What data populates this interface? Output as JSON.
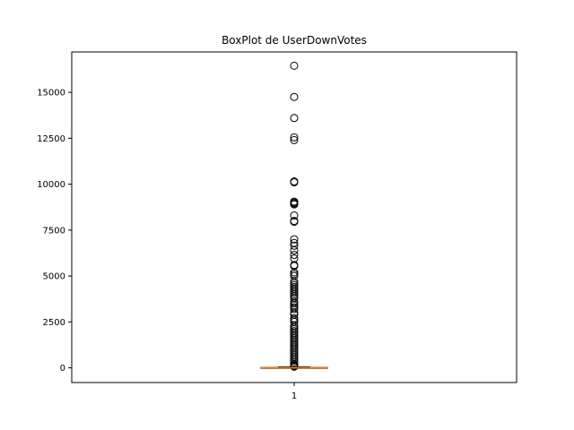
{
  "chart_data": {
    "type": "box",
    "title": "BoxPlot de UserDownVotes",
    "xlabel": "",
    "ylabel": "",
    "categories": [
      "1"
    ],
    "ylim": [
      -800,
      17200
    ],
    "yticks": [
      0,
      2500,
      5000,
      7500,
      10000,
      12500,
      15000
    ],
    "box": {
      "q1": 0,
      "median": 0,
      "q3": 20,
      "whisker_low": 0,
      "whisker_high": 50
    },
    "outliers": [
      16450,
      14750,
      13600,
      12550,
      12400,
      10150,
      10100,
      9050,
      9000,
      8950,
      8900,
      8300,
      8000,
      7950,
      7000,
      6800,
      6650,
      6400,
      6150,
      5950,
      5600,
      5550,
      5200,
      5100,
      5000,
      4700,
      4600,
      4500,
      4400,
      4300,
      4200,
      4100,
      4000,
      3900,
      3800,
      3600,
      3500,
      3400,
      3300,
      3200,
      3000,
      2900,
      2700,
      2600,
      2500,
      2300,
      2200,
      2100,
      2000,
      1900,
      1800,
      1700,
      1600,
      1500,
      1400,
      1300,
      1200,
      1100,
      1000,
      900,
      800,
      700,
      600,
      500,
      400,
      300,
      200,
      150,
      100,
      80,
      60
    ],
    "colors": {
      "box": "#000000",
      "median": "#ff7f0e",
      "outlier": "#000000"
    }
  }
}
